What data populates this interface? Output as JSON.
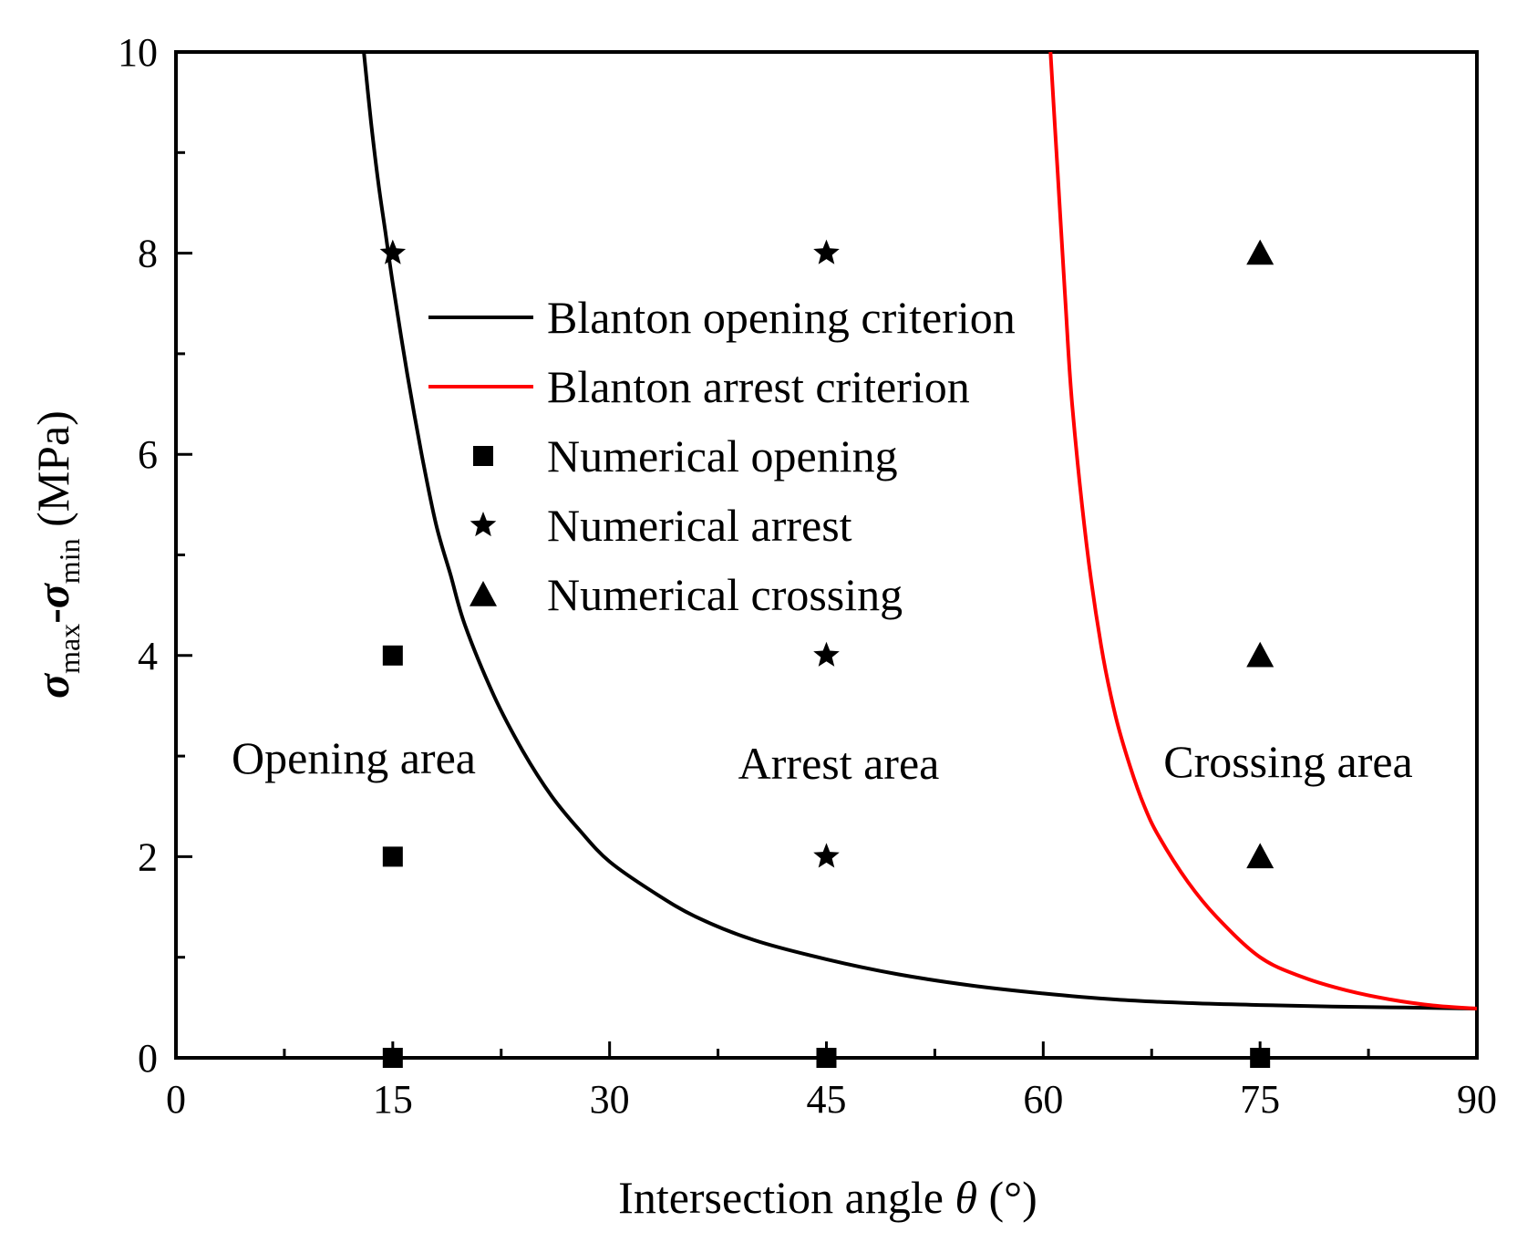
{
  "chart_data": {
    "type": "line",
    "xlabel": {
      "main": "Intersection angle ",
      "symbol": "θ",
      "unit": " (°)"
    },
    "ylabel": {
      "sigma": "σ",
      "max": "max",
      "dash": "-",
      "min": "min",
      "unit": " (MPa)"
    },
    "xlim": [
      0,
      90
    ],
    "ylim": [
      0,
      10
    ],
    "x_ticks": [
      0,
      15,
      30,
      45,
      60,
      75,
      90
    ],
    "y_ticks": [
      0,
      2,
      4,
      6,
      8,
      10
    ],
    "x_tick_labels": [
      "0",
      "15",
      "30",
      "45",
      "60",
      "75",
      "90"
    ],
    "y_tick_labels": [
      "0",
      "2",
      "4",
      "6",
      "8",
      "10"
    ],
    "grid": false,
    "legend_position": "upper-center",
    "legend": [
      "Blanton opening criterion",
      "Blanton arrest criterion",
      "Numerical opening",
      "Numerical arrest",
      "Numerical crossing"
    ],
    "region_labels": [
      "Opening area",
      "Arrest area",
      "Crossing area"
    ],
    "series": [
      {
        "name": "Blanton opening criterion",
        "kind": "line",
        "color": "#000000",
        "x": [
          13.0,
          13.5,
          14,
          14.5,
          15,
          16,
          17,
          18,
          19,
          20,
          22,
          24,
          26,
          28,
          30,
          33,
          36,
          40,
          45,
          50,
          55,
          60,
          65,
          70,
          75,
          80,
          85,
          90
        ],
        "y": [
          10.0,
          9.3,
          8.7,
          8.2,
          7.7,
          6.8,
          6.0,
          5.3,
          4.8,
          4.3,
          3.6,
          3.05,
          2.6,
          2.25,
          1.95,
          1.65,
          1.4,
          1.17,
          0.98,
          0.83,
          0.72,
          0.64,
          0.58,
          0.545,
          0.525,
          0.51,
          0.5,
          0.49
        ]
      },
      {
        "name": "Blanton arrest criterion",
        "kind": "line",
        "color": "#ff0000",
        "x": [
          60.5,
          61,
          61.5,
          62,
          63,
          64,
          65,
          66,
          67,
          68,
          70,
          72,
          75,
          78,
          81,
          84,
          87,
          90
        ],
        "y": [
          10.0,
          8.8,
          7.6,
          6.5,
          5.1,
          4.1,
          3.4,
          2.9,
          2.5,
          2.2,
          1.75,
          1.4,
          1.0,
          0.8,
          0.67,
          0.58,
          0.52,
          0.49
        ]
      },
      {
        "name": "Numerical opening",
        "kind": "marker",
        "marker": "square",
        "x": [
          15,
          15,
          15,
          45,
          75
        ],
        "y": [
          0,
          2,
          4,
          0,
          0
        ]
      },
      {
        "name": "Numerical arrest",
        "kind": "marker",
        "marker": "star",
        "x": [
          15,
          45,
          45,
          45
        ],
        "y": [
          8,
          8,
          4,
          2
        ]
      },
      {
        "name": "Numerical crossing",
        "kind": "marker",
        "marker": "triangle",
        "x": [
          75,
          75,
          75
        ],
        "y": [
          8,
          4,
          2
        ]
      }
    ]
  }
}
